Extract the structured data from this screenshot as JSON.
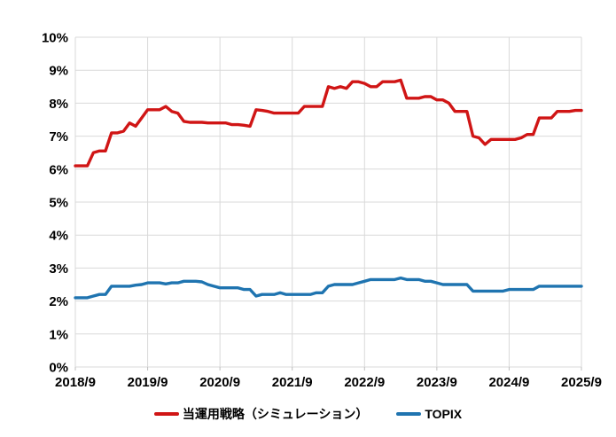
{
  "chart_data": {
    "type": "line",
    "title": "",
    "xlabel": "",
    "ylabel": "",
    "x_start": "2018/9",
    "x_end": "2025/9",
    "x_frequency": "monthly",
    "x_tick_labels": [
      "2018/9",
      "2019/9",
      "2020/9",
      "2021/9",
      "2022/9",
      "2023/9",
      "2024/9",
      "2025/9"
    ],
    "y_tick_labels": [
      "0%",
      "1%",
      "2%",
      "3%",
      "4%",
      "5%",
      "6%",
      "7%",
      "8%",
      "9%",
      "10%"
    ],
    "ylim": [
      0,
      10
    ],
    "y_unit": "%",
    "grid": true,
    "gridline_color": "#d9d9d9",
    "tick_color": "#bfbfbf",
    "legend_position": "bottom-center",
    "series": [
      {
        "name": "当運用戦略（シミュレーション）",
        "color": "#d01515",
        "values": [
          6.1,
          6.1,
          6.1,
          6.5,
          6.55,
          6.55,
          7.1,
          7.1,
          7.15,
          7.4,
          7.3,
          7.55,
          7.8,
          7.8,
          7.8,
          7.9,
          7.75,
          7.7,
          7.45,
          7.42,
          7.42,
          7.42,
          7.4,
          7.4,
          7.4,
          7.4,
          7.35,
          7.35,
          7.33,
          7.3,
          7.8,
          7.78,
          7.75,
          7.7,
          7.7,
          7.7,
          7.7,
          7.7,
          7.9,
          7.9,
          7.9,
          7.9,
          8.5,
          8.45,
          8.5,
          8.45,
          8.65,
          8.65,
          8.6,
          8.5,
          8.5,
          8.65,
          8.65,
          8.65,
          8.7,
          8.15,
          8.15,
          8.15,
          8.2,
          8.2,
          8.1,
          8.1,
          8.0,
          7.75,
          7.75,
          7.75,
          7.0,
          6.95,
          6.75,
          6.9,
          6.9,
          6.9,
          6.9,
          6.9,
          6.95,
          7.05,
          7.05,
          7.55,
          7.55,
          7.55,
          7.75,
          7.75,
          7.75,
          7.78,
          7.78
        ]
      },
      {
        "name": "TOPIX",
        "color": "#1f74b0",
        "values": [
          2.1,
          2.1,
          2.1,
          2.15,
          2.2,
          2.2,
          2.45,
          2.45,
          2.45,
          2.45,
          2.48,
          2.5,
          2.55,
          2.55,
          2.55,
          2.52,
          2.55,
          2.55,
          2.6,
          2.6,
          2.6,
          2.58,
          2.5,
          2.45,
          2.4,
          2.4,
          2.4,
          2.4,
          2.35,
          2.35,
          2.15,
          2.2,
          2.2,
          2.2,
          2.25,
          2.2,
          2.2,
          2.2,
          2.2,
          2.2,
          2.25,
          2.25,
          2.45,
          2.5,
          2.5,
          2.5,
          2.5,
          2.55,
          2.6,
          2.65,
          2.65,
          2.65,
          2.65,
          2.65,
          2.7,
          2.65,
          2.65,
          2.65,
          2.6,
          2.6,
          2.55,
          2.5,
          2.5,
          2.5,
          2.5,
          2.5,
          2.3,
          2.3,
          2.3,
          2.3,
          2.3,
          2.3,
          2.35,
          2.35,
          2.35,
          2.35,
          2.35,
          2.45,
          2.45,
          2.45,
          2.45,
          2.45,
          2.45,
          2.45,
          2.45
        ]
      }
    ]
  }
}
